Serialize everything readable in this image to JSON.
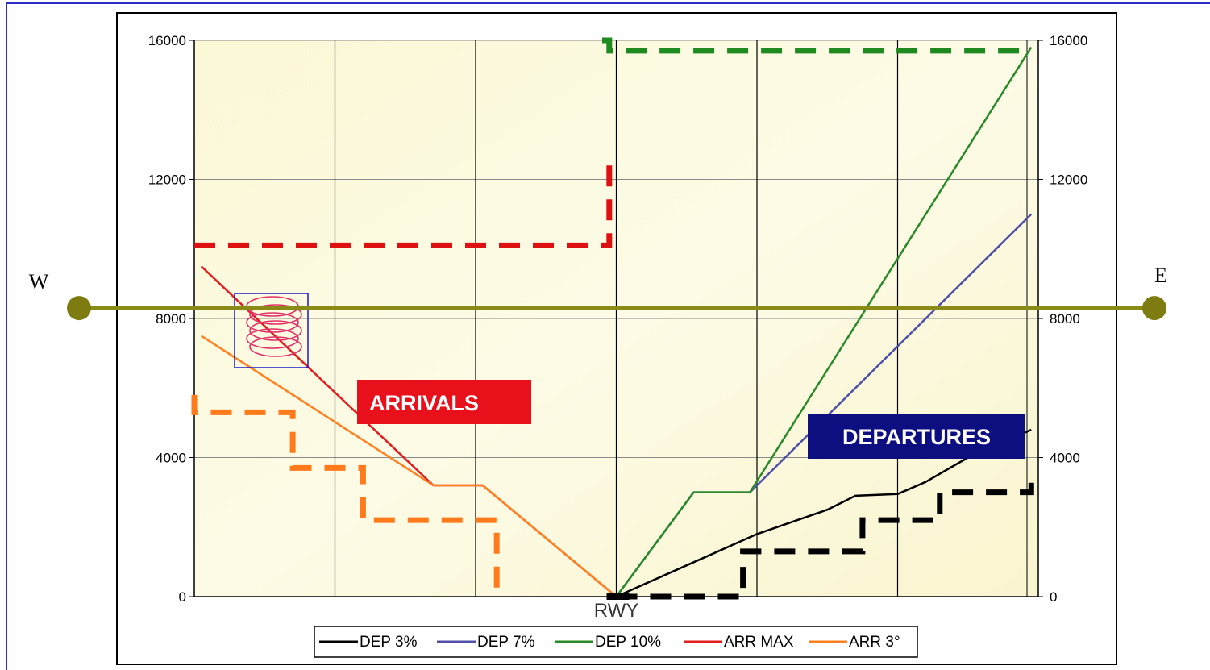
{
  "chart_data": {
    "type": "line",
    "x_range": [
      0,
      6
    ],
    "ylim": [
      0,
      16000
    ],
    "y_ticks": [
      "0",
      "4000",
      "8000",
      "12000",
      "16000"
    ],
    "y2_ticks": [
      "0",
      "4000",
      "8000",
      "12000",
      "16000"
    ],
    "x_label": "RWY",
    "grid": true,
    "legend_position": "bottom",
    "side_labels": {
      "west": "W",
      "east": "E"
    },
    "reference_level": 8300,
    "annotations": {
      "arrivals": "ARRIVALS",
      "departures": "DEPARTURES"
    },
    "series": [
      {
        "name": "DEP 3%",
        "color": "#000000",
        "points": [
          [
            3,
            0
          ],
          [
            3.5,
            900
          ],
          [
            4,
            1800
          ],
          [
            4.5,
            2500
          ],
          [
            4.7,
            2900
          ],
          [
            5,
            2950
          ],
          [
            5.2,
            3300
          ],
          [
            5.5,
            4000
          ],
          [
            5.95,
            4800
          ]
        ]
      },
      {
        "name": "DEP 7%",
        "color": "#5050a8",
        "points": [
          [
            3,
            0
          ],
          [
            3.55,
            3000
          ],
          [
            3.95,
            3000
          ],
          [
            5.95,
            11000
          ]
        ]
      },
      {
        "name": "DEP 10%",
        "color": "#2a8a2a",
        "points": [
          [
            3,
            0
          ],
          [
            3.55,
            3000
          ],
          [
            3.95,
            3000
          ],
          [
            5.95,
            15800
          ]
        ]
      },
      {
        "name": "ARR MAX",
        "color": "#e01e1e",
        "points": [
          [
            0.05,
            9500
          ],
          [
            1.7,
            3200
          ],
          [
            2.05,
            3200
          ],
          [
            3,
            0
          ]
        ]
      },
      {
        "name": "ARR 3°",
        "color": "#ff8020",
        "points": [
          [
            0.05,
            7500
          ],
          [
            1.7,
            3200
          ],
          [
            2.05,
            3200
          ],
          [
            3,
            0
          ]
        ]
      }
    ],
    "limit_lines": [
      {
        "color": "#1f8a1f",
        "points": [
          [
            2.9,
            16000
          ],
          [
            2.95,
            16000
          ],
          [
            2.95,
            15700
          ],
          [
            5.95,
            15700
          ]
        ]
      },
      {
        "color": "#dd1111",
        "points": [
          [
            0,
            10100
          ],
          [
            2.95,
            10100
          ],
          [
            2.95,
            12500
          ]
        ]
      },
      {
        "color": "#ff7a1a",
        "points": [
          [
            0,
            5800
          ],
          [
            0,
            5300
          ],
          [
            0.7,
            5300
          ],
          [
            0.7,
            3700
          ],
          [
            1.2,
            3700
          ],
          [
            1.2,
            2200
          ],
          [
            2.15,
            2200
          ],
          [
            2.15,
            0
          ]
        ]
      },
      {
        "color": "#000000",
        "points": [
          [
            3,
            0
          ],
          [
            3.9,
            0
          ],
          [
            3.9,
            1300
          ],
          [
            4.75,
            1300
          ],
          [
            4.75,
            2200
          ],
          [
            5.3,
            2200
          ],
          [
            5.3,
            3000
          ],
          [
            5.95,
            3000
          ],
          [
            5.95,
            3500
          ]
        ]
      }
    ]
  }
}
